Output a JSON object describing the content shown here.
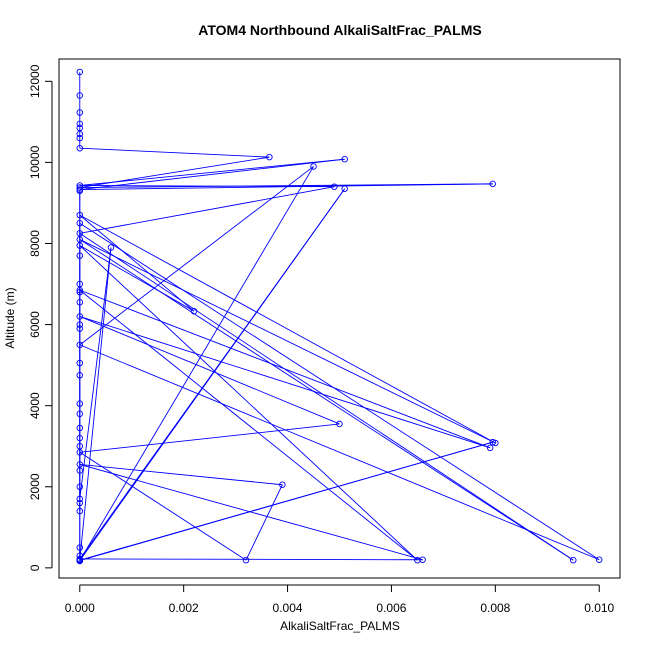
{
  "chart_data": {
    "type": "line",
    "title": "ATOM4 Northbound AlkaliSaltFrac_PALMS",
    "xlabel": "AlkaliSaltFrac_PALMS",
    "ylabel": "Altitude (m)",
    "xlim": [
      -0.0004,
      0.0104
    ],
    "ylim": [
      -250,
      12550
    ],
    "xticks": [
      0,
      0.002,
      0.004,
      0.006,
      0.008,
      0.01
    ],
    "xtick_labels": [
      "0.000",
      "0.002",
      "0.004",
      "0.006",
      "0.008",
      "0.010"
    ],
    "yticks": [
      0,
      2000,
      4000,
      6000,
      8000,
      10000,
      12000
    ],
    "ytick_labels": [
      "0",
      "2000",
      "4000",
      "6000",
      "8000",
      "10000",
      "12000"
    ],
    "grid": false,
    "legend": "none",
    "color": "#0000ff",
    "series": [
      {
        "points": [
          [
            0,
            12230
          ],
          [
            0,
            11650
          ],
          [
            0,
            11230
          ],
          [
            0,
            10950
          ],
          [
            0,
            10850
          ],
          [
            0,
            10700
          ],
          [
            0,
            10600
          ],
          [
            0,
            10350
          ],
          [
            0.00365,
            10130
          ],
          [
            0,
            9380
          ],
          [
            0.00795,
            9470
          ],
          [
            0,
            9330
          ],
          [
            0.0051,
            10080
          ],
          [
            0,
            9430
          ],
          [
            0.0049,
            9400
          ],
          [
            0,
            8250
          ],
          [
            0.0095,
            190
          ],
          [
            0,
            8100
          ],
          [
            0.008,
            3080
          ],
          [
            0,
            8700
          ],
          [
            0.0022,
            6330
          ],
          [
            0,
            7950
          ],
          [
            0.0065,
            190
          ],
          [
            0,
            6850
          ],
          [
            0.0079,
            2960
          ],
          [
            0,
            6200
          ],
          [
            0.005,
            3550
          ],
          [
            0,
            2850
          ],
          [
            0.0032,
            190
          ],
          [
            0.0039,
            2050
          ],
          [
            0,
            2550
          ],
          [
            0.0066,
            200
          ],
          [
            0,
            220
          ],
          [
            0.0051,
            9350
          ],
          [
            0,
            180
          ],
          [
            0.00795,
            3100
          ],
          [
            0,
            190
          ],
          [
            0.0006,
            7900
          ],
          [
            0,
            1700
          ],
          [
            0,
            8500
          ],
          [
            0.01,
            200
          ],
          [
            0,
            5500
          ],
          [
            0.0045,
            9900
          ],
          [
            0,
            180
          ],
          [
            0,
            9300
          ],
          [
            0,
            7700
          ],
          [
            0,
            7000
          ],
          [
            0,
            6800
          ],
          [
            0,
            6550
          ],
          [
            0,
            6000
          ],
          [
            0,
            5900
          ],
          [
            0,
            5050
          ],
          [
            0,
            4750
          ],
          [
            0,
            4050
          ],
          [
            0,
            3800
          ],
          [
            0,
            3450
          ],
          [
            0,
            3200
          ],
          [
            0,
            3000
          ],
          [
            0,
            2400
          ],
          [
            0,
            2000
          ],
          [
            0,
            1400
          ],
          [
            0,
            1600
          ],
          [
            0,
            500
          ],
          [
            0,
            300
          ],
          [
            0,
            200
          ],
          [
            0,
            170
          ]
        ]
      }
    ]
  }
}
